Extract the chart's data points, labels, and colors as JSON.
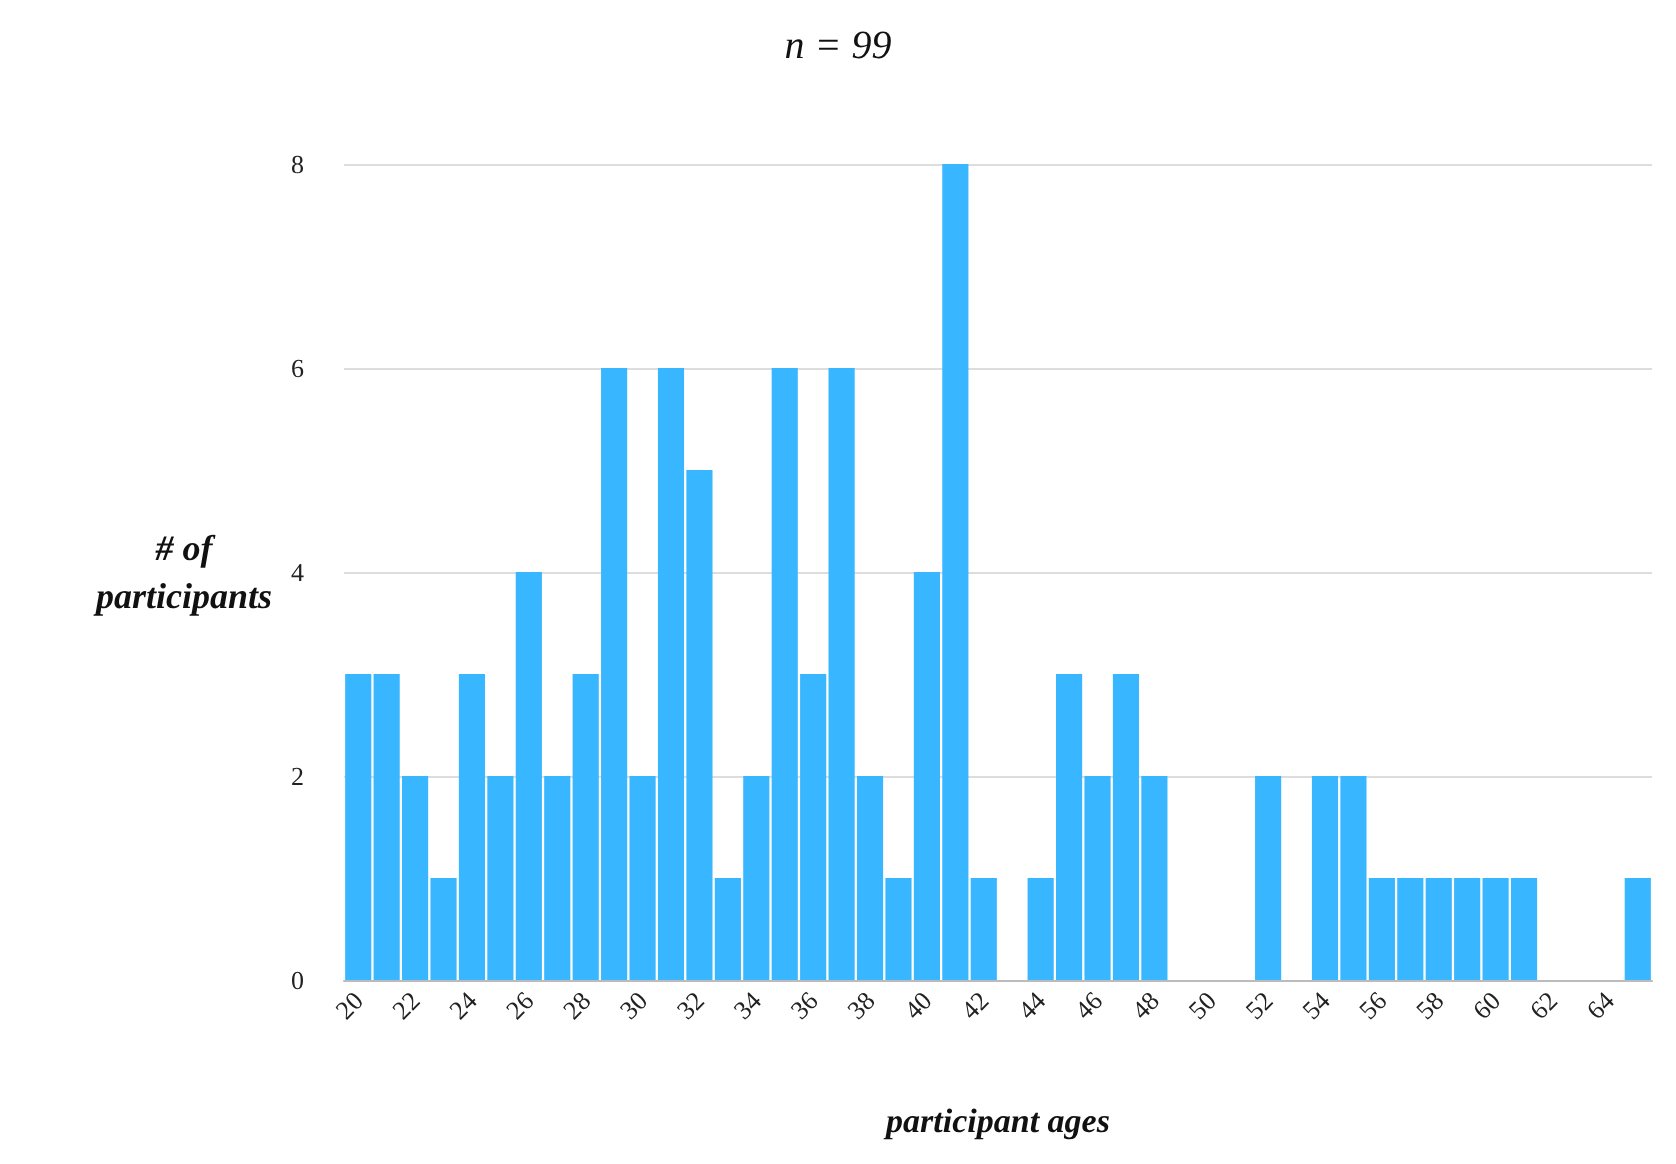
{
  "chart_data": {
    "type": "bar",
    "title": "n = 99",
    "xlabel": "participant ages",
    "ylabel": "# of participants",
    "categories": [
      "20",
      null,
      "22",
      null,
      "24",
      null,
      "26",
      null,
      "28",
      null,
      "30",
      null,
      "32",
      null,
      "34",
      null,
      "36",
      null,
      "38",
      null,
      "40",
      null,
      "42",
      null,
      "44",
      null,
      "46",
      null,
      "48",
      null,
      "50",
      null,
      "52",
      null,
      "54",
      null,
      "56",
      null,
      "58",
      null,
      "60",
      null,
      "62",
      null,
      "64",
      null
    ],
    "values": [
      3,
      3,
      2,
      1,
      3,
      2,
      4,
      2,
      3,
      6,
      2,
      6,
      5,
      1,
      2,
      6,
      3,
      6,
      2,
      1,
      4,
      8,
      1,
      0,
      1,
      3,
      2,
      3,
      2,
      0,
      0,
      0,
      2,
      0,
      2,
      2,
      1,
      1,
      1,
      1,
      1,
      1,
      0,
      0,
      0,
      1
    ],
    "color": "#38b6ff",
    "ylim": [
      0,
      8
    ],
    "yticks": [
      0,
      2,
      4,
      6,
      8
    ],
    "grid": "y"
  }
}
